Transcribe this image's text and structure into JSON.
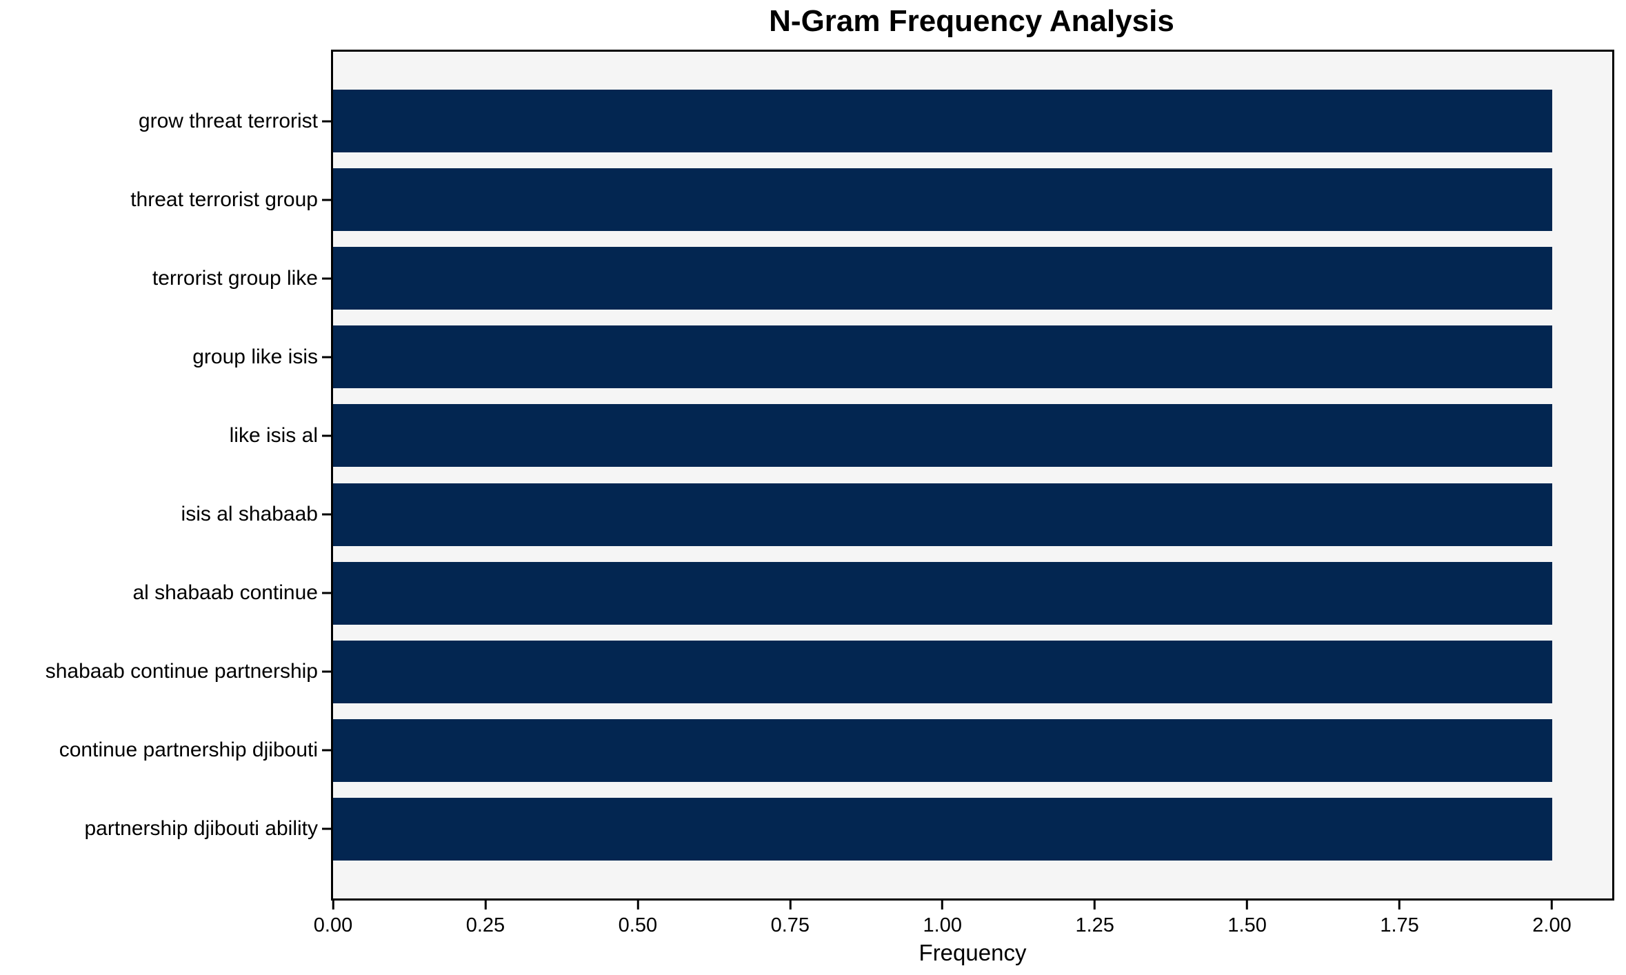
{
  "chart_data": {
    "type": "bar",
    "orientation": "horizontal",
    "title": "N-Gram Frequency Analysis",
    "xlabel": "Frequency",
    "ylabel": "",
    "categories": [
      "grow threat terrorist",
      "threat terrorist group",
      "terrorist group like",
      "group like isis",
      "like isis al",
      "isis al shabaab",
      "al shabaab continue",
      "shabaab continue partnership",
      "continue partnership djibouti",
      "partnership djibouti ability"
    ],
    "values": [
      2,
      2,
      2,
      2,
      2,
      2,
      2,
      2,
      2,
      2
    ],
    "xlim": [
      0,
      2.099
    ],
    "x_tick_values": [
      0,
      0.25,
      0.5,
      0.75,
      1.0,
      1.25,
      1.5,
      1.75,
      2.0
    ],
    "x_tick_labels": [
      "0.00",
      "0.25",
      "0.50",
      "0.75",
      "1.00",
      "1.25",
      "1.50",
      "1.75",
      "2.00"
    ],
    "grid": false,
    "legend": null,
    "colors": {
      "bar": "#032651",
      "plot_background": "#f5f5f5",
      "figure_background": "#ffffff",
      "spine": "#000000",
      "text": "#000000"
    }
  }
}
